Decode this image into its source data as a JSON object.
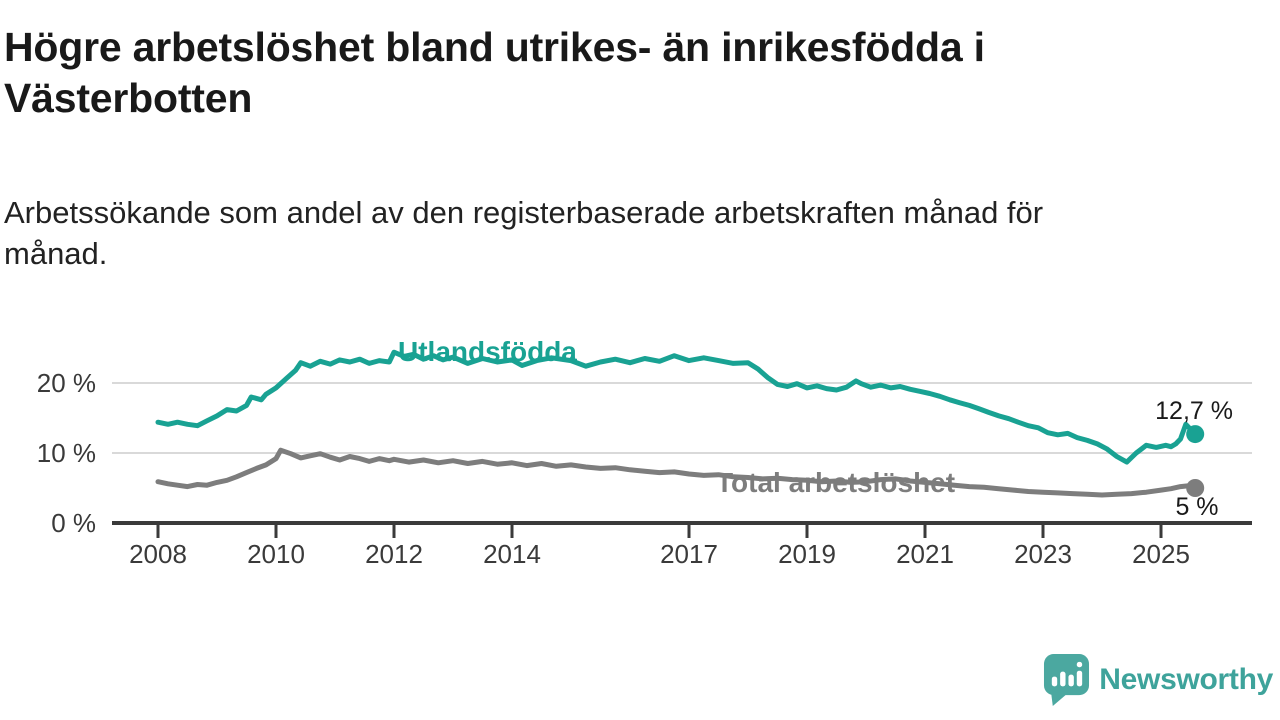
{
  "header": {
    "title_lines": [
      "Högre arbetslöshet bland utrikes- än inrikesfödda i",
      "Västerbotten"
    ],
    "subtitle_lines": [
      "Arbetssökande som andel av den registerbaserade arbetskraften månad för",
      "månad."
    ]
  },
  "chart_data": {
    "type": "line",
    "unit": "%",
    "title": "Högre arbetslöshet bland utrikes- än inrikesfödda i Västerbotten",
    "subtitle": "Arbetssökande som andel av den registerbaserade arbetskraften månad för månad.",
    "grid": true,
    "x_axis": {
      "range": [
        2008,
        2025.6
      ],
      "ticks": [
        2008,
        2010,
        2012,
        2014,
        2017,
        2019,
        2021,
        2023,
        2025
      ],
      "tick_labels": [
        "2008",
        "2010",
        "2012",
        "2014",
        "2017",
        "2019",
        "2021",
        "2023",
        "2025"
      ]
    },
    "y_axis": {
      "range": [
        0,
        26
      ],
      "ticks": [
        {
          "value": 0,
          "label": "0 %"
        },
        {
          "value": 10,
          "label": "10 %"
        },
        {
          "value": 20,
          "label": "20 %"
        }
      ]
    },
    "series": [
      {
        "name": "Utlandsfödda",
        "color": "#19a293",
        "end_label": "12,7 %",
        "end_value": 12.7,
        "points": [
          [
            2008.0,
            14.4
          ],
          [
            2008.17,
            14.1
          ],
          [
            2008.33,
            14.4
          ],
          [
            2008.5,
            14.1
          ],
          [
            2008.67,
            13.9
          ],
          [
            2008.83,
            14.6
          ],
          [
            2009.0,
            15.3
          ],
          [
            2009.17,
            16.2
          ],
          [
            2009.33,
            16.0
          ],
          [
            2009.5,
            16.8
          ],
          [
            2009.58,
            18.0
          ],
          [
            2009.75,
            17.6
          ],
          [
            2009.83,
            18.4
          ],
          [
            2010.0,
            19.3
          ],
          [
            2010.17,
            20.6
          ],
          [
            2010.33,
            21.8
          ],
          [
            2010.42,
            22.9
          ],
          [
            2010.58,
            22.4
          ],
          [
            2010.75,
            23.1
          ],
          [
            2010.92,
            22.7
          ],
          [
            2011.08,
            23.3
          ],
          [
            2011.25,
            23.0
          ],
          [
            2011.42,
            23.4
          ],
          [
            2011.58,
            22.8
          ],
          [
            2011.75,
            23.2
          ],
          [
            2011.92,
            23.0
          ],
          [
            2012.0,
            24.4
          ],
          [
            2012.17,
            23.8
          ],
          [
            2012.33,
            24.1
          ],
          [
            2012.5,
            23.4
          ],
          [
            2012.67,
            23.9
          ],
          [
            2012.83,
            23.3
          ],
          [
            2013.0,
            23.7
          ],
          [
            2013.25,
            22.8
          ],
          [
            2013.5,
            23.5
          ],
          [
            2013.75,
            23.0
          ],
          [
            2014.0,
            23.3
          ],
          [
            2014.17,
            22.5
          ],
          [
            2014.42,
            23.2
          ],
          [
            2014.67,
            23.6
          ],
          [
            2015.0,
            23.2
          ],
          [
            2015.25,
            22.4
          ],
          [
            2015.5,
            23.0
          ],
          [
            2015.75,
            23.4
          ],
          [
            2016.0,
            22.9
          ],
          [
            2016.25,
            23.5
          ],
          [
            2016.5,
            23.1
          ],
          [
            2016.75,
            23.9
          ],
          [
            2017.0,
            23.2
          ],
          [
            2017.25,
            23.6
          ],
          [
            2017.5,
            23.2
          ],
          [
            2017.75,
            22.8
          ],
          [
            2018.0,
            22.9
          ],
          [
            2018.17,
            22.0
          ],
          [
            2018.33,
            20.8
          ],
          [
            2018.5,
            19.8
          ],
          [
            2018.67,
            19.5
          ],
          [
            2018.83,
            19.9
          ],
          [
            2019.0,
            19.3
          ],
          [
            2019.17,
            19.6
          ],
          [
            2019.33,
            19.2
          ],
          [
            2019.5,
            19.0
          ],
          [
            2019.67,
            19.4
          ],
          [
            2019.83,
            20.3
          ],
          [
            2019.92,
            19.9
          ],
          [
            2020.08,
            19.4
          ],
          [
            2020.25,
            19.7
          ],
          [
            2020.42,
            19.3
          ],
          [
            2020.58,
            19.5
          ],
          [
            2020.75,
            19.1
          ],
          [
            2020.92,
            18.8
          ],
          [
            2021.08,
            18.5
          ],
          [
            2021.25,
            18.1
          ],
          [
            2021.42,
            17.6
          ],
          [
            2021.58,
            17.2
          ],
          [
            2021.75,
            16.8
          ],
          [
            2021.92,
            16.3
          ],
          [
            2022.08,
            15.8
          ],
          [
            2022.25,
            15.3
          ],
          [
            2022.42,
            14.9
          ],
          [
            2022.58,
            14.4
          ],
          [
            2022.75,
            13.9
          ],
          [
            2022.92,
            13.6
          ],
          [
            2023.08,
            12.9
          ],
          [
            2023.25,
            12.6
          ],
          [
            2023.42,
            12.8
          ],
          [
            2023.58,
            12.2
          ],
          [
            2023.75,
            11.8
          ],
          [
            2023.92,
            11.3
          ],
          [
            2024.08,
            10.6
          ],
          [
            2024.25,
            9.5
          ],
          [
            2024.42,
            8.7
          ],
          [
            2024.58,
            10.0
          ],
          [
            2024.75,
            11.1
          ],
          [
            2024.92,
            10.8
          ],
          [
            2025.08,
            11.1
          ],
          [
            2025.17,
            10.9
          ],
          [
            2025.25,
            11.3
          ],
          [
            2025.33,
            12.0
          ],
          [
            2025.42,
            14.1
          ],
          [
            2025.58,
            12.7
          ]
        ]
      },
      {
        "name": "Total arbetslöshet",
        "color": "#7d7d7d",
        "end_label": "5 %",
        "end_value": 5.0,
        "points": [
          [
            2008.0,
            5.9
          ],
          [
            2008.17,
            5.6
          ],
          [
            2008.33,
            5.4
          ],
          [
            2008.5,
            5.2
          ],
          [
            2008.67,
            5.5
          ],
          [
            2008.83,
            5.4
          ],
          [
            2009.0,
            5.8
          ],
          [
            2009.17,
            6.1
          ],
          [
            2009.33,
            6.6
          ],
          [
            2009.5,
            7.2
          ],
          [
            2009.67,
            7.8
          ],
          [
            2009.83,
            8.3
          ],
          [
            2010.0,
            9.2
          ],
          [
            2010.08,
            10.4
          ],
          [
            2010.25,
            9.9
          ],
          [
            2010.42,
            9.3
          ],
          [
            2010.58,
            9.6
          ],
          [
            2010.75,
            9.9
          ],
          [
            2010.92,
            9.4
          ],
          [
            2011.08,
            9.0
          ],
          [
            2011.25,
            9.5
          ],
          [
            2011.42,
            9.2
          ],
          [
            2011.58,
            8.8
          ],
          [
            2011.75,
            9.2
          ],
          [
            2011.92,
            8.9
          ],
          [
            2012.0,
            9.1
          ],
          [
            2012.25,
            8.7
          ],
          [
            2012.5,
            9.0
          ],
          [
            2012.75,
            8.6
          ],
          [
            2013.0,
            8.9
          ],
          [
            2013.25,
            8.5
          ],
          [
            2013.5,
            8.8
          ],
          [
            2013.75,
            8.4
          ],
          [
            2014.0,
            8.6
          ],
          [
            2014.25,
            8.2
          ],
          [
            2014.5,
            8.5
          ],
          [
            2014.75,
            8.1
          ],
          [
            2015.0,
            8.3
          ],
          [
            2015.25,
            8.0
          ],
          [
            2015.5,
            7.8
          ],
          [
            2015.75,
            7.9
          ],
          [
            2016.0,
            7.6
          ],
          [
            2016.25,
            7.4
          ],
          [
            2016.5,
            7.2
          ],
          [
            2016.75,
            7.3
          ],
          [
            2017.0,
            7.0
          ],
          [
            2017.25,
            6.8
          ],
          [
            2017.5,
            6.9
          ],
          [
            2017.75,
            6.6
          ],
          [
            2018.0,
            6.5
          ],
          [
            2018.25,
            6.3
          ],
          [
            2018.5,
            6.4
          ],
          [
            2018.75,
            6.2
          ],
          [
            2019.0,
            6.1
          ],
          [
            2019.25,
            5.9
          ],
          [
            2019.5,
            6.0
          ],
          [
            2019.75,
            5.8
          ],
          [
            2020.0,
            5.9
          ],
          [
            2020.25,
            6.2
          ],
          [
            2020.5,
            6.3
          ],
          [
            2020.75,
            6.0
          ],
          [
            2021.0,
            5.8
          ],
          [
            2021.25,
            5.6
          ],
          [
            2021.5,
            5.4
          ],
          [
            2021.75,
            5.2
          ],
          [
            2022.0,
            5.1
          ],
          [
            2022.25,
            4.9
          ],
          [
            2022.5,
            4.7
          ],
          [
            2022.75,
            4.5
          ],
          [
            2023.0,
            4.4
          ],
          [
            2023.25,
            4.3
          ],
          [
            2023.5,
            4.2
          ],
          [
            2023.75,
            4.1
          ],
          [
            2024.0,
            4.0
          ],
          [
            2024.25,
            4.1
          ],
          [
            2024.5,
            4.2
          ],
          [
            2024.75,
            4.4
          ],
          [
            2025.0,
            4.7
          ],
          [
            2025.17,
            4.9
          ],
          [
            2025.33,
            5.2
          ],
          [
            2025.45,
            5.3
          ],
          [
            2025.58,
            5.0
          ]
        ]
      }
    ],
    "legend_position": "inline-labels"
  },
  "branding": {
    "logo_text": "Newsworthy",
    "logo_color": "#4ba8a0",
    "text_color": "#3ea39b"
  }
}
